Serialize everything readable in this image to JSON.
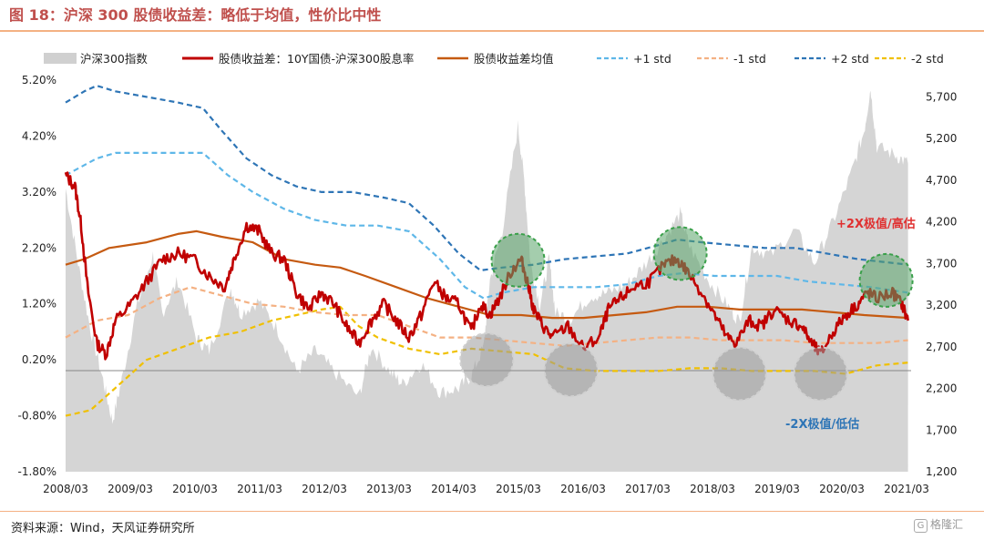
{
  "header": {
    "title": "图 18：沪深 300 股债收益差：略低于均值，性价比中性"
  },
  "footer": {
    "source": "资料来源：Wind，天风证券研究所",
    "watermark": "格隆汇",
    "watermark_icon": "G"
  },
  "chart_data": {
    "type": "line",
    "x_categories": [
      "2008/03",
      "2009/03",
      "2010/03",
      "2011/03",
      "2012/03",
      "2013/03",
      "2014/03",
      "2015/03",
      "2016/03",
      "2017/03",
      "2018/03",
      "2019/03",
      "2020/03",
      "2021/03"
    ],
    "y_left": {
      "ticks": [
        "5.20%",
        "4.20%",
        "3.20%",
        "2.20%",
        "1.20%",
        "0.20%",
        "-0.80%",
        "-1.80%"
      ],
      "range": [
        -1.8,
        5.2
      ]
    },
    "y_right": {
      "ticks": [
        "5,700",
        "5,200",
        "4,700",
        "4,200",
        "3,700",
        "3,200",
        "2,700",
        "2,200",
        "1,700",
        "1,200"
      ],
      "range": [
        1200,
        5900
      ]
    },
    "legend": [
      {
        "name": "沪深300指数",
        "key": "hs300"
      },
      {
        "name": "股债收益差：10Y国债-沪深300股息率",
        "key": "spread"
      },
      {
        "name": "股债收益差均值",
        "key": "mean"
      },
      {
        "name": "+1 std",
        "key": "p1"
      },
      {
        "name": "-1 std",
        "key": "m1"
      },
      {
        "name": "+2 std",
        "key": "p2"
      },
      {
        "name": "-2 std",
        "key": "m2"
      }
    ],
    "annotations": {
      "high": "+2X极值/高估",
      "low": "-2X极值/低估"
    },
    "colors": {
      "hs300": "#d0d0d0",
      "spread": "#c00000",
      "mean": "#c55a11",
      "p1": "#5eb7e8",
      "m1": "#f4b183",
      "p2": "#2e75b6",
      "m2": "#f0c000",
      "high_circle": "#5aa469",
      "low_circle": "#9a9a9a",
      "annot_high": "#e03030",
      "annot_low": "#2e75b6"
    },
    "series": {
      "hs300": [
        [
          2008.2,
          4600
        ],
        [
          2008.4,
          3700
        ],
        [
          2008.6,
          2900
        ],
        [
          2008.8,
          2300
        ],
        [
          2008.95,
          1800
        ],
        [
          2009.1,
          2300
        ],
        [
          2009.35,
          3200
        ],
        [
          2009.6,
          3800
        ],
        [
          2009.75,
          3100
        ],
        [
          2010.0,
          3500
        ],
        [
          2010.3,
          2800
        ],
        [
          2010.5,
          2650
        ],
        [
          2010.85,
          3400
        ],
        [
          2011.0,
          3100
        ],
        [
          2011.3,
          3250
        ],
        [
          2011.6,
          2900
        ],
        [
          2011.9,
          2400
        ],
        [
          2012.2,
          2650
        ],
        [
          2012.5,
          2400
        ],
        [
          2012.9,
          2100
        ],
        [
          2013.1,
          2700
        ],
        [
          2013.4,
          2400
        ],
        [
          2013.6,
          2250
        ],
        [
          2013.9,
          2500
        ],
        [
          2014.2,
          2150
        ],
        [
          2014.5,
          2200
        ],
        [
          2014.7,
          2350
        ],
        [
          2014.9,
          2700
        ],
        [
          2015.0,
          3500
        ],
        [
          2015.2,
          4100
        ],
        [
          2015.45,
          5350
        ],
        [
          2015.55,
          4700
        ],
        [
          2015.65,
          3700
        ],
        [
          2015.8,
          3200
        ],
        [
          2015.95,
          3750
        ],
        [
          2016.05,
          3100
        ],
        [
          2016.3,
          3050
        ],
        [
          2016.6,
          3300
        ],
        [
          2016.9,
          3350
        ],
        [
          2017.2,
          3450
        ],
        [
          2017.5,
          3700
        ],
        [
          2017.8,
          4000
        ],
        [
          2018.05,
          4300
        ],
        [
          2018.2,
          3900
        ],
        [
          2018.5,
          3500
        ],
        [
          2018.8,
          3200
        ],
        [
          2019.0,
          3000
        ],
        [
          2019.2,
          3900
        ],
        [
          2019.5,
          3800
        ],
        [
          2019.9,
          4100
        ],
        [
          2020.2,
          3700
        ],
        [
          2020.5,
          4200
        ],
        [
          2020.8,
          4800
        ],
        [
          2021.0,
          5300
        ],
        [
          2021.1,
          5800
        ],
        [
          2021.2,
          5100
        ],
        [
          2021.5,
          5000
        ],
        [
          2021.7,
          4900
        ]
      ],
      "spread": [
        [
          2008.2,
          3.5
        ],
        [
          2008.35,
          3.3
        ],
        [
          2008.45,
          2.6
        ],
        [
          2008.55,
          1.5
        ],
        [
          2008.7,
          0.5
        ],
        [
          2008.85,
          0.3
        ],
        [
          2009.0,
          0.9
        ],
        [
          2009.25,
          1.2
        ],
        [
          2009.5,
          1.6
        ],
        [
          2009.75,
          2.0
        ],
        [
          2010.0,
          2.1
        ],
        [
          2010.25,
          2.0
        ],
        [
          2010.5,
          1.7
        ],
        [
          2010.75,
          1.5
        ],
        [
          2010.9,
          2.0
        ],
        [
          2011.1,
          2.6
        ],
        [
          2011.3,
          2.5
        ],
        [
          2011.5,
          2.1
        ],
        [
          2011.7,
          2.0
        ],
        [
          2011.9,
          1.4
        ],
        [
          2012.1,
          1.1
        ],
        [
          2012.3,
          1.4
        ],
        [
          2012.5,
          1.2
        ],
        [
          2012.7,
          0.8
        ],
        [
          2012.9,
          0.5
        ],
        [
          2013.1,
          0.9
        ],
        [
          2013.3,
          1.2
        ],
        [
          2013.5,
          0.9
        ],
        [
          2013.7,
          0.6
        ],
        [
          2013.9,
          1.0
        ],
        [
          2014.1,
          1.6
        ],
        [
          2014.3,
          1.3
        ],
        [
          2014.5,
          1.2
        ],
        [
          2014.7,
          0.7
        ],
        [
          2014.85,
          1.2
        ],
        [
          2015.0,
          1.0
        ],
        [
          2015.15,
          1.3
        ],
        [
          2015.35,
          1.8
        ],
        [
          2015.5,
          2.0
        ],
        [
          2015.6,
          1.6
        ],
        [
          2015.7,
          1.1
        ],
        [
          2015.85,
          0.8
        ],
        [
          2016.0,
          0.6
        ],
        [
          2016.25,
          0.8
        ],
        [
          2016.5,
          0.4
        ],
        [
          2016.75,
          0.6
        ],
        [
          2016.9,
          1.1
        ],
        [
          2017.1,
          1.3
        ],
        [
          2017.3,
          1.5
        ],
        [
          2017.55,
          1.6
        ],
        [
          2017.8,
          1.9
        ],
        [
          2018.0,
          2.0
        ],
        [
          2018.15,
          1.8
        ],
        [
          2018.4,
          1.4
        ],
        [
          2018.6,
          1.0
        ],
        [
          2018.8,
          0.6
        ],
        [
          2018.95,
          0.5
        ],
        [
          2019.15,
          0.9
        ],
        [
          2019.35,
          0.8
        ],
        [
          2019.55,
          1.1
        ],
        [
          2019.8,
          0.9
        ],
        [
          2020.0,
          0.8
        ],
        [
          2020.15,
          0.5
        ],
        [
          2020.3,
          0.3
        ],
        [
          2020.5,
          0.7
        ],
        [
          2020.7,
          1.0
        ],
        [
          2020.9,
          1.2
        ],
        [
          2021.05,
          1.4
        ],
        [
          2021.2,
          1.3
        ],
        [
          2021.45,
          1.4
        ],
        [
          2021.6,
          1.2
        ],
        [
          2021.7,
          0.9
        ]
      ],
      "mean": [
        [
          2008.2,
          1.9
        ],
        [
          2008.5,
          2.0
        ],
        [
          2008.9,
          2.2
        ],
        [
          2009.5,
          2.3
        ],
        [
          2010.0,
          2.45
        ],
        [
          2010.3,
          2.5
        ],
        [
          2010.7,
          2.4
        ],
        [
          2011.2,
          2.3
        ],
        [
          2011.7,
          2.0
        ],
        [
          2012.2,
          1.9
        ],
        [
          2012.6,
          1.85
        ],
        [
          2013.0,
          1.7
        ],
        [
          2013.5,
          1.5
        ],
        [
          2014.0,
          1.3
        ],
        [
          2014.5,
          1.15
        ],
        [
          2015.0,
          1.0
        ],
        [
          2015.5,
          1.0
        ],
        [
          2016.0,
          0.95
        ],
        [
          2016.5,
          0.95
        ],
        [
          2017.0,
          1.0
        ],
        [
          2017.5,
          1.05
        ],
        [
          2018.0,
          1.15
        ],
        [
          2018.5,
          1.15
        ],
        [
          2019.0,
          1.1
        ],
        [
          2019.5,
          1.1
        ],
        [
          2020.0,
          1.1
        ],
        [
          2020.5,
          1.05
        ],
        [
          2021.0,
          1.0
        ],
        [
          2021.7,
          0.95
        ]
      ],
      "p1": [
        [
          2008.2,
          3.5
        ],
        [
          2008.7,
          3.8
        ],
        [
          2009.0,
          3.9
        ],
        [
          2009.5,
          3.9
        ],
        [
          2010.0,
          3.9
        ],
        [
          2010.4,
          3.9
        ],
        [
          2010.8,
          3.5
        ],
        [
          2011.2,
          3.2
        ],
        [
          2011.7,
          2.9
        ],
        [
          2012.2,
          2.7
        ],
        [
          2012.7,
          2.6
        ],
        [
          2013.2,
          2.6
        ],
        [
          2013.7,
          2.5
        ],
        [
          2014.2,
          2.0
        ],
        [
          2014.6,
          1.5
        ],
        [
          2014.9,
          1.3
        ],
        [
          2015.2,
          1.4
        ],
        [
          2015.7,
          1.5
        ],
        [
          2016.2,
          1.5
        ],
        [
          2016.7,
          1.5
        ],
        [
          2017.2,
          1.55
        ],
        [
          2017.7,
          1.7
        ],
        [
          2018.1,
          1.75
        ],
        [
          2018.6,
          1.7
        ],
        [
          2019.1,
          1.7
        ],
        [
          2019.6,
          1.7
        ],
        [
          2020.1,
          1.6
        ],
        [
          2020.6,
          1.55
        ],
        [
          2021.1,
          1.5
        ],
        [
          2021.7,
          1.4
        ]
      ],
      "m1": [
        [
          2008.2,
          0.6
        ],
        [
          2008.7,
          0.9
        ],
        [
          2009.2,
          1.0
        ],
        [
          2009.7,
          1.3
        ],
        [
          2010.2,
          1.5
        ],
        [
          2010.7,
          1.35
        ],
        [
          2011.2,
          1.2
        ],
        [
          2011.7,
          1.15
        ],
        [
          2012.2,
          1.05
        ],
        [
          2012.7,
          1.0
        ],
        [
          2013.2,
          1.0
        ],
        [
          2013.7,
          0.8
        ],
        [
          2014.2,
          0.6
        ],
        [
          2014.7,
          0.6
        ],
        [
          2015.2,
          0.55
        ],
        [
          2015.7,
          0.5
        ],
        [
          2016.2,
          0.45
        ],
        [
          2016.7,
          0.5
        ],
        [
          2017.2,
          0.55
        ],
        [
          2017.7,
          0.6
        ],
        [
          2018.2,
          0.6
        ],
        [
          2018.7,
          0.55
        ],
        [
          2019.2,
          0.55
        ],
        [
          2019.7,
          0.55
        ],
        [
          2020.2,
          0.5
        ],
        [
          2020.7,
          0.5
        ],
        [
          2021.2,
          0.5
        ],
        [
          2021.7,
          0.55
        ]
      ],
      "p2": [
        [
          2008.2,
          4.8
        ],
        [
          2008.5,
          5.0
        ],
        [
          2008.7,
          5.1
        ],
        [
          2009.0,
          5.0
        ],
        [
          2009.5,
          4.9
        ],
        [
          2010.0,
          4.8
        ],
        [
          2010.4,
          4.7
        ],
        [
          2010.7,
          4.3
        ],
        [
          2011.1,
          3.8
        ],
        [
          2011.5,
          3.5
        ],
        [
          2011.9,
          3.3
        ],
        [
          2012.3,
          3.2
        ],
        [
          2012.8,
          3.2
        ],
        [
          2013.3,
          3.1
        ],
        [
          2013.7,
          3.0
        ],
        [
          2014.1,
          2.6
        ],
        [
          2014.5,
          2.1
        ],
        [
          2014.85,
          1.8
        ],
        [
          2015.2,
          1.85
        ],
        [
          2015.7,
          1.9
        ],
        [
          2016.2,
          2.0
        ],
        [
          2016.7,
          2.05
        ],
        [
          2017.2,
          2.1
        ],
        [
          2017.7,
          2.25
        ],
        [
          2018.0,
          2.35
        ],
        [
          2018.4,
          2.3
        ],
        [
          2018.9,
          2.25
        ],
        [
          2019.4,
          2.2
        ],
        [
          2019.9,
          2.2
        ],
        [
          2020.4,
          2.1
        ],
        [
          2020.9,
          2.0
        ],
        [
          2021.3,
          1.95
        ],
        [
          2021.7,
          1.9
        ]
      ],
      "m2": [
        [
          2008.2,
          -0.8
        ],
        [
          2008.6,
          -0.7
        ],
        [
          2009.0,
          -0.3
        ],
        [
          2009.5,
          0.2
        ],
        [
          2010.0,
          0.4
        ],
        [
          2010.5,
          0.6
        ],
        [
          2011.0,
          0.7
        ],
        [
          2011.5,
          0.9
        ],
        [
          2011.9,
          1.0
        ],
        [
          2012.3,
          1.1
        ],
        [
          2012.6,
          1.15
        ],
        [
          2012.9,
          0.8
        ],
        [
          2013.2,
          0.6
        ],
        [
          2013.7,
          0.4
        ],
        [
          2014.2,
          0.3
        ],
        [
          2014.7,
          0.4
        ],
        [
          2015.2,
          0.35
        ],
        [
          2015.7,
          0.3
        ],
        [
          2016.2,
          0.05
        ],
        [
          2016.7,
          0.0
        ],
        [
          2017.2,
          0.0
        ],
        [
          2017.7,
          0.0
        ],
        [
          2018.2,
          0.05
        ],
        [
          2018.7,
          0.05
        ],
        [
          2019.2,
          0.0
        ],
        [
          2019.7,
          0.0
        ],
        [
          2020.2,
          0.0
        ],
        [
          2020.7,
          -0.05
        ],
        [
          2021.2,
          0.1
        ],
        [
          2021.7,
          0.15
        ]
      ]
    },
    "highlights": {
      "high": [
        [
          2015.45,
          1.98
        ],
        [
          2018.05,
          2.1
        ],
        [
          2021.35,
          1.62
        ]
      ],
      "low": [
        [
          2014.95,
          0.2
        ],
        [
          2016.3,
          0.02
        ],
        [
          2019.0,
          -0.05
        ],
        [
          2020.3,
          -0.05
        ]
      ]
    }
  }
}
